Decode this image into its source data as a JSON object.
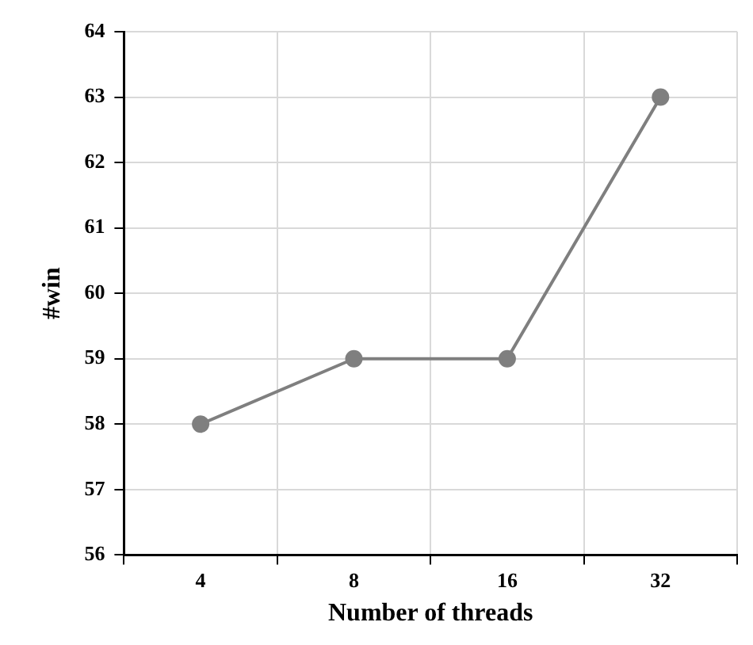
{
  "chart_data": {
    "type": "line",
    "xlabel": "Number of threads",
    "ylabel": "#win",
    "categories": [
      "4",
      "8",
      "16",
      "32"
    ],
    "series": [
      {
        "color": "#7f7f7f",
        "values": [
          58,
          59,
          59,
          63
        ]
      }
    ],
    "ylim": [
      56,
      64
    ],
    "yticks": [
      56,
      57,
      58,
      59,
      60,
      61,
      62,
      63,
      64
    ],
    "grid": true,
    "legend": false,
    "marker": "circle",
    "line_style": "solid"
  }
}
